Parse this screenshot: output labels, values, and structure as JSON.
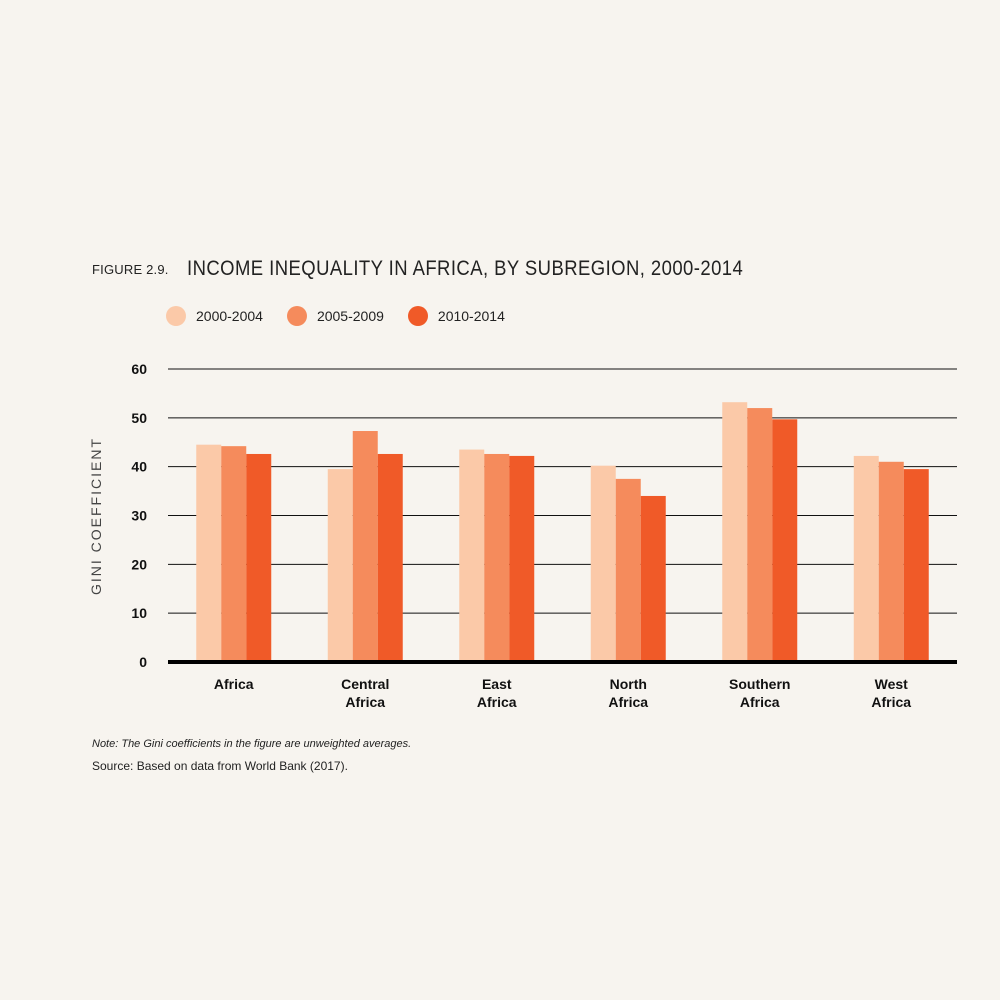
{
  "figure": {
    "label": "FIGURE 2.9.",
    "title": "INCOME INEQUALITY IN AFRICA, BY SUBREGION, 2000-2014"
  },
  "note": "Note: The Gini coefficients in the figure are unweighted averages.",
  "source": "Source: Based on data from World Bank (2017).",
  "chart_data": {
    "type": "bar",
    "ylabel": "GINI COEFFICIENT",
    "xlabel": "",
    "ylim": [
      0,
      60
    ],
    "yticks": [
      0,
      10,
      20,
      30,
      40,
      50,
      60
    ],
    "grid": true,
    "legend_position": "top-left",
    "categories": [
      [
        "Africa"
      ],
      [
        "Central",
        "Africa"
      ],
      [
        "East",
        "Africa"
      ],
      [
        "North",
        "Africa"
      ],
      [
        "Southern",
        "Africa"
      ],
      [
        "West",
        "Africa"
      ]
    ],
    "series": [
      {
        "name": "2000-2004",
        "color": "#fbc9a8",
        "values": [
          44.5,
          39.5,
          43.5,
          40.2,
          53.2,
          42.2
        ]
      },
      {
        "name": "2005-2009",
        "color": "#f58b5c",
        "values": [
          44.2,
          47.3,
          42.6,
          37.5,
          52.0,
          41.0
        ]
      },
      {
        "name": "2010-2014",
        "color": "#f05a28",
        "values": [
          42.6,
          42.6,
          42.2,
          34.0,
          49.7,
          39.5
        ]
      }
    ]
  }
}
